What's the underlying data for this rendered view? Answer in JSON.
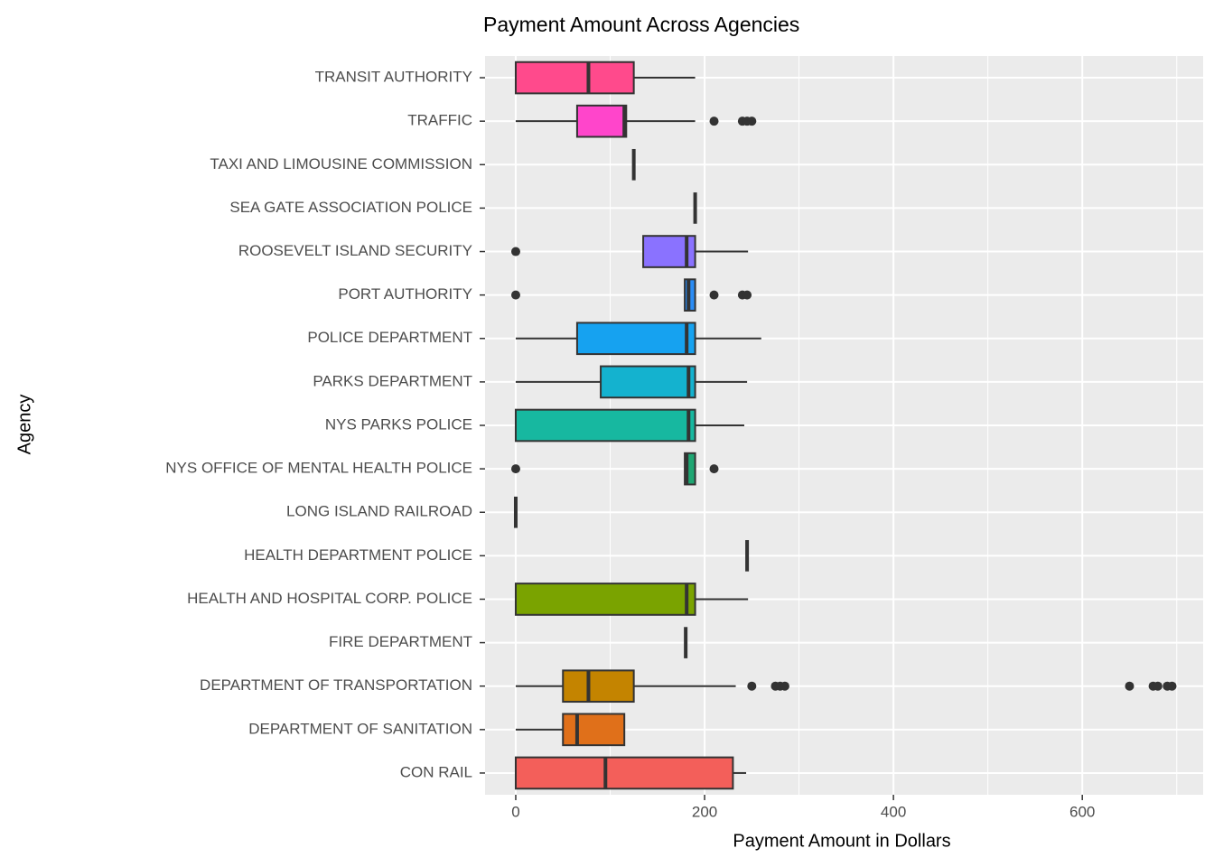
{
  "chart_data": {
    "type": "boxplot",
    "title": "Payment Amount Across Agencies",
    "x_label": "Payment Amount in Dollars",
    "y_label": "Agency",
    "categories": [
      "CON RAIL",
      "DEPARTMENT OF SANITATION",
      "DEPARTMENT OF TRANSPORTATION",
      "FIRE DEPARTMENT",
      "HEALTH AND HOSPITAL CORP. POLICE",
      "HEALTH DEPARTMENT POLICE",
      "LONG ISLAND RAILROAD",
      "NYS OFFICE OF MENTAL HEALTH POLICE",
      "NYS PARKS POLICE",
      "PARKS DEPARTMENT",
      "POLICE DEPARTMENT",
      "PORT AUTHORITY",
      "ROOSEVELT ISLAND SECURITY",
      "SEA GATE ASSOCIATION POLICE",
      "TAXI AND LIMOUSINE COMMISSION",
      "TRAFFIC",
      "TRANSIT AUTHORITY"
    ],
    "colors": [
      "#F35F5A",
      "#E0701A",
      "#C48400",
      "#A89A00",
      "#7AA300",
      "#3FA900",
      "#00AE4C",
      "#1EA672",
      "#17B8A0",
      "#14B2CF",
      "#16A2F0",
      "#2A8CF5",
      "#8A72FF",
      "#C064F5",
      "#E858E0",
      "#FF45CB",
      "#FF4A8C"
    ],
    "boxes": [
      {
        "min": 0,
        "q1": 0,
        "median": 95,
        "q3": 230,
        "max": 244,
        "outliers": []
      },
      {
        "min": 0,
        "q1": 50,
        "median": 65,
        "q3": 115,
        "max": 115,
        "outliers": []
      },
      {
        "min": 0,
        "q1": 50,
        "median": 77,
        "q3": 125,
        "max": 233,
        "outliers": [
          250,
          275,
          280,
          285,
          650,
          675,
          680,
          690,
          695
        ]
      },
      {
        "min": 180,
        "q1": 180,
        "median": 180,
        "q3": 180,
        "max": 180,
        "outliers": []
      },
      {
        "min": 0,
        "q1": 0,
        "median": 181,
        "q3": 190,
        "max": 246,
        "outliers": []
      },
      {
        "min": 245,
        "q1": 245,
        "median": 245,
        "q3": 245,
        "max": 245,
        "outliers": []
      },
      {
        "min": 0,
        "q1": 0,
        "median": 0,
        "q3": 0,
        "max": 0,
        "outliers": []
      },
      {
        "min": 179,
        "q1": 179,
        "median": 181,
        "q3": 190,
        "max": 190,
        "outliers": [
          0,
          210
        ]
      },
      {
        "min": 0,
        "q1": 0,
        "median": 183,
        "q3": 190,
        "max": 242,
        "outliers": []
      },
      {
        "min": 0,
        "q1": 90,
        "median": 183,
        "q3": 190,
        "max": 245,
        "outliers": []
      },
      {
        "min": 0,
        "q1": 65,
        "median": 181,
        "q3": 190,
        "max": 260,
        "outliers": []
      },
      {
        "min": 179,
        "q1": 179,
        "median": 183,
        "q3": 190,
        "max": 190,
        "outliers": [
          0,
          210,
          240,
          245
        ]
      },
      {
        "min": 135,
        "q1": 135,
        "median": 181,
        "q3": 190,
        "max": 246,
        "outliers": [
          0
        ]
      },
      {
        "min": 190,
        "q1": 190,
        "median": 190,
        "q3": 190,
        "max": 190,
        "outliers": []
      },
      {
        "min": 125,
        "q1": 125,
        "median": 125,
        "q3": 125,
        "max": 125,
        "outliers": []
      },
      {
        "min": 0,
        "q1": 65,
        "median": 115,
        "q3": 117,
        "max": 190,
        "outliers": [
          210,
          240,
          245,
          250
        ]
      },
      {
        "min": 0,
        "q1": 0,
        "median": 77,
        "q3": 125,
        "max": 190,
        "outliers": []
      }
    ],
    "xlim": [
      -32.5,
      728
    ],
    "xticks": [
      0,
      200,
      400,
      600
    ],
    "minor_xticks": [
      100,
      300,
      500,
      700
    ],
    "grid": true
  }
}
